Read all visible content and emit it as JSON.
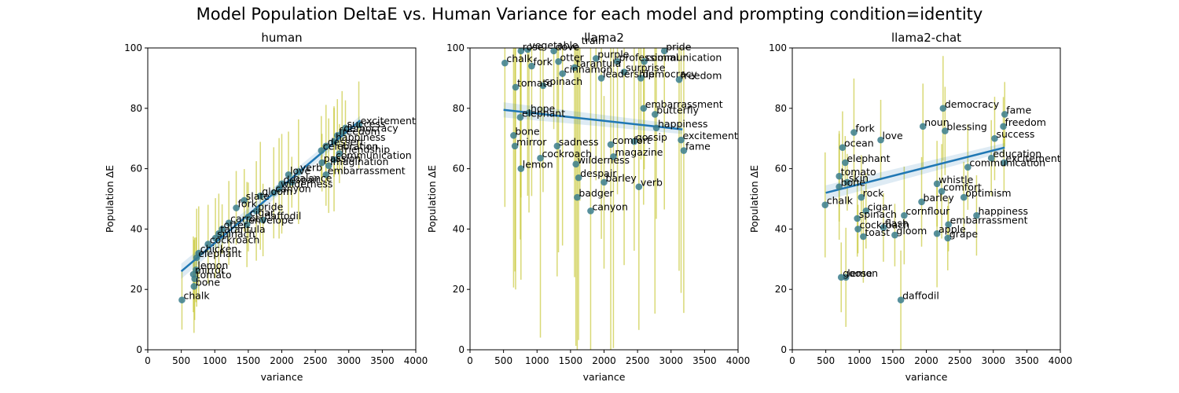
{
  "figure": {
    "suptitle": "Model Population DeltaE vs. Human Variance for each model and prompting condition=identity",
    "colors": {
      "points": "#3a7c8c",
      "errorbars": "#bfbf1a",
      "fit": "#1f77b4"
    }
  },
  "chart_data": [
    {
      "type": "scatter",
      "title": "human",
      "xlabel": "variance",
      "ylabel": "Population ΔE",
      "xlim": [
        0,
        4000
      ],
      "ylim": [
        0,
        100
      ],
      "xticks": [
        0,
        500,
        1000,
        1500,
        2000,
        2500,
        3000,
        3500,
        4000
      ],
      "yticks": [
        0,
        20,
        40,
        60,
        80,
        100
      ],
      "fit_line": {
        "x": [
          500,
          3170
        ],
        "y": [
          26,
          76
        ]
      },
      "points": [
        {
          "label": "chalk",
          "x": 510,
          "y": 16.5
        },
        {
          "label": "bone",
          "x": 690,
          "y": 21
        },
        {
          "label": "tomato",
          "x": 700,
          "y": 23.5
        },
        {
          "label": "mirror",
          "x": 680,
          "y": 25
        },
        {
          "label": "lemon",
          "x": 720,
          "y": 26.5
        },
        {
          "label": "elephant",
          "x": 730,
          "y": 30.5
        },
        {
          "label": "chicken",
          "x": 760,
          "y": 32
        },
        {
          "label": "cockroach",
          "x": 900,
          "y": 35
        },
        {
          "label": "spinach",
          "x": 1010,
          "y": 37
        },
        {
          "label": "tarantula",
          "x": 1060,
          "y": 38.5
        },
        {
          "label": "otter",
          "x": 1110,
          "y": 40
        },
        {
          "label": "carrot",
          "x": 1210,
          "y": 42
        },
        {
          "label": "envelope",
          "x": 1480,
          "y": 41.5
        },
        {
          "label": "daffodil",
          "x": 1720,
          "y": 43
        },
        {
          "label": "pride",
          "x": 1620,
          "y": 46
        },
        {
          "label": "cigar",
          "x": 1500,
          "y": 44
        },
        {
          "label": "fork",
          "x": 1320,
          "y": 47
        },
        {
          "label": "slate",
          "x": 1440,
          "y": 49.5
        },
        {
          "label": "gloom",
          "x": 1680,
          "y": 51
        },
        {
          "label": "canyon",
          "x": 1880,
          "y": 52
        },
        {
          "label": "wilderness",
          "x": 1960,
          "y": 53.5
        },
        {
          "label": "despair",
          "x": 2000,
          "y": 55
        },
        {
          "label": "balance",
          "x": 2150,
          "y": 55.5
        },
        {
          "label": "love",
          "x": 2100,
          "y": 58
        },
        {
          "label": "verb",
          "x": 2250,
          "y": 59
        },
        {
          "label": "embarrassment",
          "x": 2660,
          "y": 58
        },
        {
          "label": "imagination",
          "x": 2700,
          "y": 61
        },
        {
          "label": "passion",
          "x": 2600,
          "y": 62
        },
        {
          "label": "communication",
          "x": 2780,
          "y": 63
        },
        {
          "label": "friendship",
          "x": 2860,
          "y": 65
        },
        {
          "label": "celebration",
          "x": 2590,
          "y": 66
        },
        {
          "label": "dessert",
          "x": 2660,
          "y": 67.5
        },
        {
          "label": "happiness",
          "x": 2780,
          "y": 69
        },
        {
          "label": "freedom",
          "x": 2830,
          "y": 71
        },
        {
          "label": "democracy",
          "x": 2900,
          "y": 72
        },
        {
          "label": "success",
          "x": 2950,
          "y": 73.5
        },
        {
          "label": "excitement",
          "x": 3150,
          "y": 74.5
        }
      ]
    },
    {
      "type": "scatter",
      "title": "llama2",
      "xlabel": "variance",
      "ylabel": "Population ΔE",
      "xlim": [
        0,
        4000
      ],
      "ylim": [
        0,
        100
      ],
      "xticks": [
        0,
        500,
        1000,
        1500,
        2000,
        2500,
        3000,
        3500,
        4000
      ],
      "yticks": [
        0,
        20,
        40,
        60,
        80,
        100
      ],
      "fit_line": {
        "x": [
          500,
          3170
        ],
        "y": [
          79.5,
          73
        ]
      },
      "points": [
        {
          "label": "chalk",
          "x": 520,
          "y": 95
        },
        {
          "label": "rose",
          "x": 760,
          "y": 99
        },
        {
          "label": "vegetable",
          "x": 860,
          "y": 99.5
        },
        {
          "label": "dove",
          "x": 1250,
          "y": 99
        },
        {
          "label": "train",
          "x": 1640,
          "y": 101
        },
        {
          "label": "pride",
          "x": 2900,
          "y": 99
        },
        {
          "label": "fork",
          "x": 920,
          "y": 94
        },
        {
          "label": "otter",
          "x": 1320,
          "y": 95.5
        },
        {
          "label": "purple",
          "x": 1880,
          "y": 96.5
        },
        {
          "label": "professional",
          "x": 2200,
          "y": 95.5
        },
        {
          "label": "communication",
          "x": 2600,
          "y": 95.5
        },
        {
          "label": "tarantula",
          "x": 1560,
          "y": 93.5
        },
        {
          "label": "cinnamon",
          "x": 1380,
          "y": 91.5
        },
        {
          "label": "surprise",
          "x": 2300,
          "y": 92
        },
        {
          "label": "freedom",
          "x": 3120,
          "y": 89.5
        },
        {
          "label": "democracy",
          "x": 2550,
          "y": 90
        },
        {
          "label": "leadership",
          "x": 1960,
          "y": 90
        },
        {
          "label": "tomato",
          "x": 680,
          "y": 87
        },
        {
          "label": "spinach",
          "x": 1090,
          "y": 87.5
        },
        {
          "label": "cockroach",
          "x": 1050,
          "y": 63.5
        },
        {
          "label": "embarrassment",
          "x": 2590,
          "y": 80
        },
        {
          "label": "butterfly",
          "x": 2760,
          "y": 78
        },
        {
          "label": "hope",
          "x": 880,
          "y": 78.5
        },
        {
          "label": "elephant",
          "x": 750,
          "y": 77
        },
        {
          "label": "bone",
          "x": 650,
          "y": 71
        },
        {
          "label": "mirror",
          "x": 670,
          "y": 67.5
        },
        {
          "label": "sadness",
          "x": 1300,
          "y": 67.5
        },
        {
          "label": "excitement",
          "x": 3150,
          "y": 69.5
        },
        {
          "label": "happiness",
          "x": 2780,
          "y": 73.5
        },
        {
          "label": "fame",
          "x": 3190,
          "y": 66
        },
        {
          "label": "comfort",
          "x": 2100,
          "y": 68
        },
        {
          "label": "gossip",
          "x": 2450,
          "y": 69
        },
        {
          "label": "lemon",
          "x": 760,
          "y": 60
        },
        {
          "label": "wilderness",
          "x": 1580,
          "y": 61.5
        },
        {
          "label": "magazine",
          "x": 2140,
          "y": 64
        },
        {
          "label": "despair",
          "x": 1620,
          "y": 57
        },
        {
          "label": "barley",
          "x": 2000,
          "y": 55.5
        },
        {
          "label": "verb",
          "x": 2520,
          "y": 54
        },
        {
          "label": "badger",
          "x": 1600,
          "y": 50.5
        },
        {
          "label": "canyon",
          "x": 1800,
          "y": 46
        }
      ]
    },
    {
      "type": "scatter",
      "title": "llama2-chat",
      "xlabel": "variance",
      "ylabel": "Population ΔE",
      "xlim": [
        0,
        4000
      ],
      "ylim": [
        0,
        100
      ],
      "xticks": [
        0,
        500,
        1000,
        1500,
        2000,
        2500,
        3000,
        3500,
        4000
      ],
      "yticks": [
        0,
        20,
        40,
        60,
        80,
        100
      ],
      "fit_line": {
        "x": [
          500,
          3170
        ],
        "y": [
          52,
          67
        ]
      },
      "points": [
        {
          "label": "chalk",
          "x": 490,
          "y": 48
        },
        {
          "label": "bone",
          "x": 700,
          "y": 54
        },
        {
          "label": "skin",
          "x": 820,
          "y": 55.5
        },
        {
          "label": "tomato",
          "x": 700,
          "y": 57.5
        },
        {
          "label": "elephant",
          "x": 790,
          "y": 62
        },
        {
          "label": "fork",
          "x": 920,
          "y": 72
        },
        {
          "label": "love",
          "x": 1320,
          "y": 69.5
        },
        {
          "label": "ocean",
          "x": 750,
          "y": 67
        },
        {
          "label": "rock",
          "x": 1030,
          "y": 50.5
        },
        {
          "label": "cigar",
          "x": 1100,
          "y": 46
        },
        {
          "label": "spinach",
          "x": 970,
          "y": 43.5
        },
        {
          "label": "cockroach",
          "x": 980,
          "y": 40
        },
        {
          "label": "toast",
          "x": 1060,
          "y": 37.5
        },
        {
          "label": "flash",
          "x": 1360,
          "y": 40.5
        },
        {
          "label": "gloom",
          "x": 1530,
          "y": 38
        },
        {
          "label": "cornflour",
          "x": 1670,
          "y": 44.5
        },
        {
          "label": "apple",
          "x": 2160,
          "y": 38.5
        },
        {
          "label": "grape",
          "x": 2320,
          "y": 37
        },
        {
          "label": "embarrassment",
          "x": 2330,
          "y": 41.5
        },
        {
          "label": "happiness",
          "x": 2750,
          "y": 44.5
        },
        {
          "label": "optimism",
          "x": 2560,
          "y": 50.5
        },
        {
          "label": "barley",
          "x": 1930,
          "y": 49
        },
        {
          "label": "comfort",
          "x": 2230,
          "y": 52.5
        },
        {
          "label": "whistle",
          "x": 2160,
          "y": 55
        },
        {
          "label": "communication",
          "x": 2620,
          "y": 60.5
        },
        {
          "label": "excitement",
          "x": 3160,
          "y": 62
        },
        {
          "label": "education",
          "x": 2970,
          "y": 63.5
        },
        {
          "label": "success",
          "x": 3020,
          "y": 70
        },
        {
          "label": "freedom",
          "x": 3150,
          "y": 74
        },
        {
          "label": "fame",
          "x": 3170,
          "y": 78
        },
        {
          "label": "democracy",
          "x": 2250,
          "y": 80
        },
        {
          "label": "noun",
          "x": 1950,
          "y": 74
        },
        {
          "label": "blessing",
          "x": 2280,
          "y": 72.5
        },
        {
          "label": "lemon",
          "x": 800,
          "y": 24
        },
        {
          "label": "goose",
          "x": 730,
          "y": 24
        },
        {
          "label": "daffodil",
          "x": 1620,
          "y": 16.5
        }
      ]
    }
  ]
}
